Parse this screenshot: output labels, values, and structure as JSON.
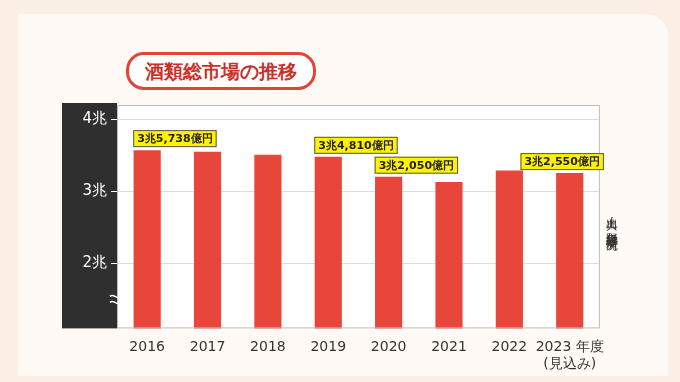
{
  "chart_data": {
    "type": "bar",
    "title": "酒類総市場の推移",
    "source": "出典：矢野経済研究所",
    "categories": [
      "2016",
      "2017",
      "2018",
      "2019",
      "2020",
      "2021",
      "2022",
      "2023 年度\n(見込み)"
    ],
    "values": [
      3.5738,
      3.55,
      3.51,
      3.481,
      3.205,
      3.13,
      3.29,
      3.255
    ],
    "value_labels": [
      "3兆5,738億円",
      null,
      null,
      "3兆4,810億円",
      "3兆2,050億円",
      null,
      null,
      "3兆2,550億円"
    ],
    "data_labels": true,
    "color": "#e8463a",
    "ylim": [
      1.1,
      4.2
    ],
    "yticks": [
      {
        "value": 2,
        "label": "2兆"
      },
      {
        "value": 3,
        "label": "3兆"
      },
      {
        "value": 4,
        "label": "4兆"
      }
    ],
    "grid": true
  }
}
